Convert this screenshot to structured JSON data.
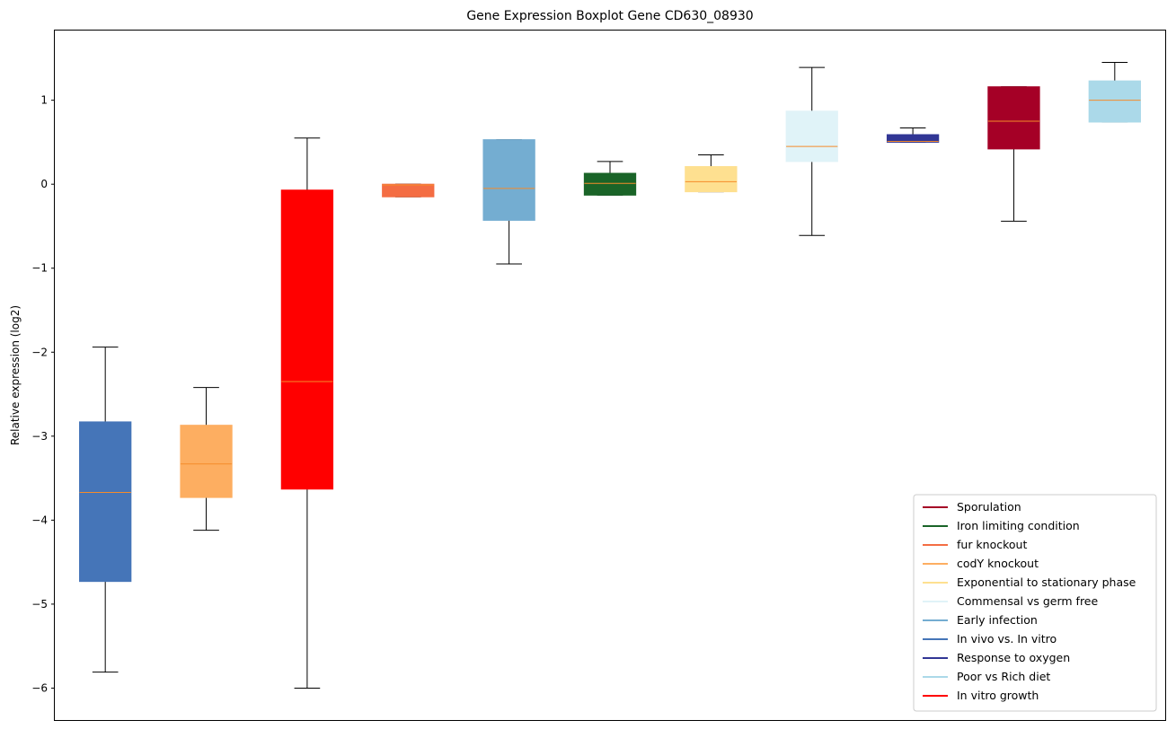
{
  "chart_data": {
    "type": "box",
    "title": "Gene Expression Boxplot Gene CD630_08930",
    "xlabel": "",
    "ylabel": "Relative expression (log2)",
    "ylim": [
      -6.38,
      1.83
    ],
    "yticks": [
      1,
      0,
      -1,
      -2,
      -3,
      -4,
      -5,
      -6
    ],
    "ytick_labels": [
      "1",
      "0",
      "−1",
      "−2",
      "−3",
      "−4",
      "−5",
      "−6"
    ],
    "median_color": "#f58b2a",
    "legend_position": "lower-right",
    "boxes": [
      {
        "name": "In vivo vs. In vitro",
        "color": "#4575b8",
        "whisker_low": -5.81,
        "q1": -4.73,
        "median": -3.67,
        "q3": -2.83,
        "whisker_high": -1.94
      },
      {
        "name": "codY knockout",
        "color": "#fdae61",
        "whisker_low": -4.12,
        "q1": -3.73,
        "median": -3.33,
        "q3": -2.87,
        "whisker_high": -2.42
      },
      {
        "name": "In vitro growth",
        "color": "#ff0000",
        "whisker_low": -6.0,
        "q1": -3.63,
        "median": -2.35,
        "q3": -0.07,
        "whisker_high": 0.55
      },
      {
        "name": "fur knockout",
        "color": "#f46d43",
        "whisker_low": -0.15,
        "q1": -0.15,
        "median": -0.01,
        "q3": 0.0,
        "whisker_high": 0.0
      },
      {
        "name": "Early infection",
        "color": "#74add1",
        "whisker_low": -0.95,
        "q1": -0.43,
        "median": -0.05,
        "q3": 0.53,
        "whisker_high": 0.53
      },
      {
        "name": "Iron limiting condition",
        "color": "#1a6428",
        "whisker_low": -0.13,
        "q1": -0.13,
        "median": 0.01,
        "q3": 0.13,
        "whisker_high": 0.27
      },
      {
        "name": "Exponential to stationary phase",
        "color": "#fee090",
        "whisker_low": -0.09,
        "q1": -0.09,
        "median": 0.03,
        "q3": 0.21,
        "whisker_high": 0.35
      },
      {
        "name": "Commensal vs germ free",
        "color": "#e0f3f8",
        "whisker_low": -0.61,
        "q1": 0.27,
        "median": 0.45,
        "q3": 0.87,
        "whisker_high": 1.39
      },
      {
        "name": "Response to oxygen",
        "color": "#313695",
        "whisker_low": 0.5,
        "q1": 0.5,
        "median": 0.51,
        "q3": 0.59,
        "whisker_high": 0.67
      },
      {
        "name": "Sporulation",
        "color": "#a50026",
        "whisker_low": -0.44,
        "q1": 0.42,
        "median": 0.75,
        "q3": 1.16,
        "whisker_high": 1.16
      },
      {
        "name": "Poor vs Rich diet",
        "color": "#abd9e9",
        "whisker_low": 0.74,
        "q1": 0.74,
        "median": 1.0,
        "q3": 1.23,
        "whisker_high": 1.45
      }
    ],
    "legend": [
      {
        "label": "Sporulation",
        "color": "#a50026"
      },
      {
        "label": "Iron limiting condition",
        "color": "#1a6428"
      },
      {
        "label": "fur knockout",
        "color": "#f46d43"
      },
      {
        "label": "codY knockout",
        "color": "#fdae61"
      },
      {
        "label": "Exponential to stationary phase",
        "color": "#fee090"
      },
      {
        "label": "Commensal vs germ free",
        "color": "#e0f3f8"
      },
      {
        "label": "Early infection",
        "color": "#74add1"
      },
      {
        "label": "In vivo vs. In vitro",
        "color": "#4575b8"
      },
      {
        "label": "Response to oxygen",
        "color": "#313695"
      },
      {
        "label": "Poor vs Rich diet",
        "color": "#abd9e9"
      },
      {
        "label": "In vitro growth",
        "color": "#ff0000"
      }
    ]
  }
}
